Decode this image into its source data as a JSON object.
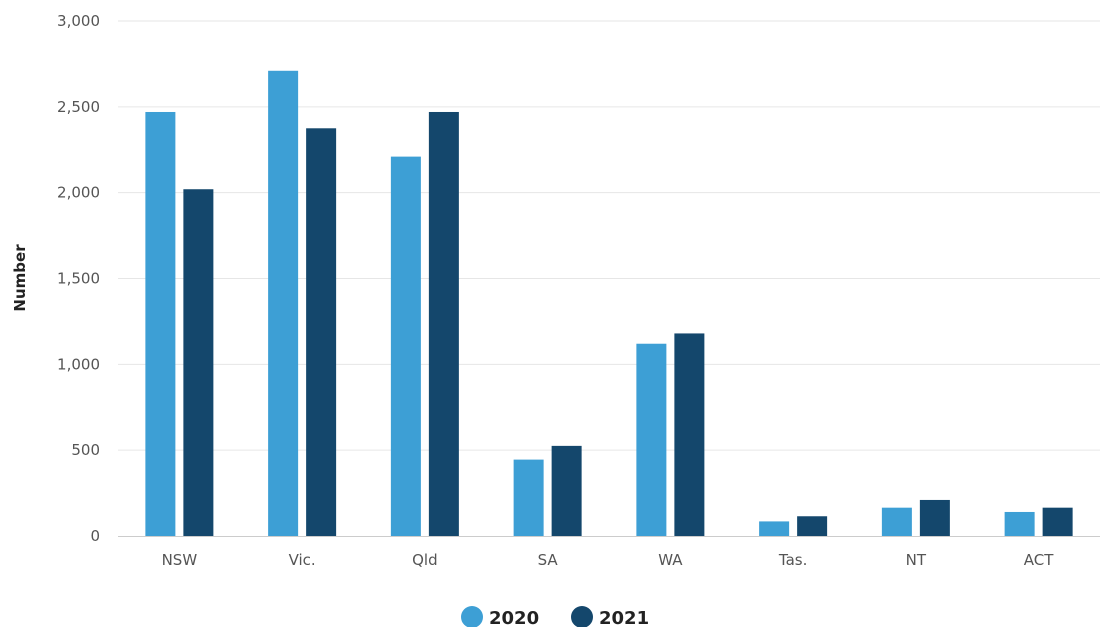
{
  "chart_data": {
    "type": "bar",
    "title": "",
    "xlabel": "",
    "ylabel": "Number",
    "ylim": [
      0,
      3000
    ],
    "yticks": [
      0,
      500,
      1000,
      1500,
      2000,
      2500,
      3000
    ],
    "ytick_labels": [
      "0",
      "500",
      "1,000",
      "1,500",
      "2,000",
      "2,500",
      "3,000"
    ],
    "grid": true,
    "legend_position": "bottom",
    "categories": [
      "NSW",
      "Vic.",
      "Qld",
      "SA",
      "WA",
      "Tas.",
      "NT",
      "ACT"
    ],
    "series": [
      {
        "name": "2020",
        "color": "#3d9fd5",
        "values": [
          2470,
          2710,
          2210,
          445,
          1120,
          85,
          165,
          140
        ]
      },
      {
        "name": "2021",
        "color": "#14476c",
        "values": [
          2020,
          2375,
          2470,
          525,
          1180,
          115,
          210,
          165
        ]
      }
    ]
  }
}
